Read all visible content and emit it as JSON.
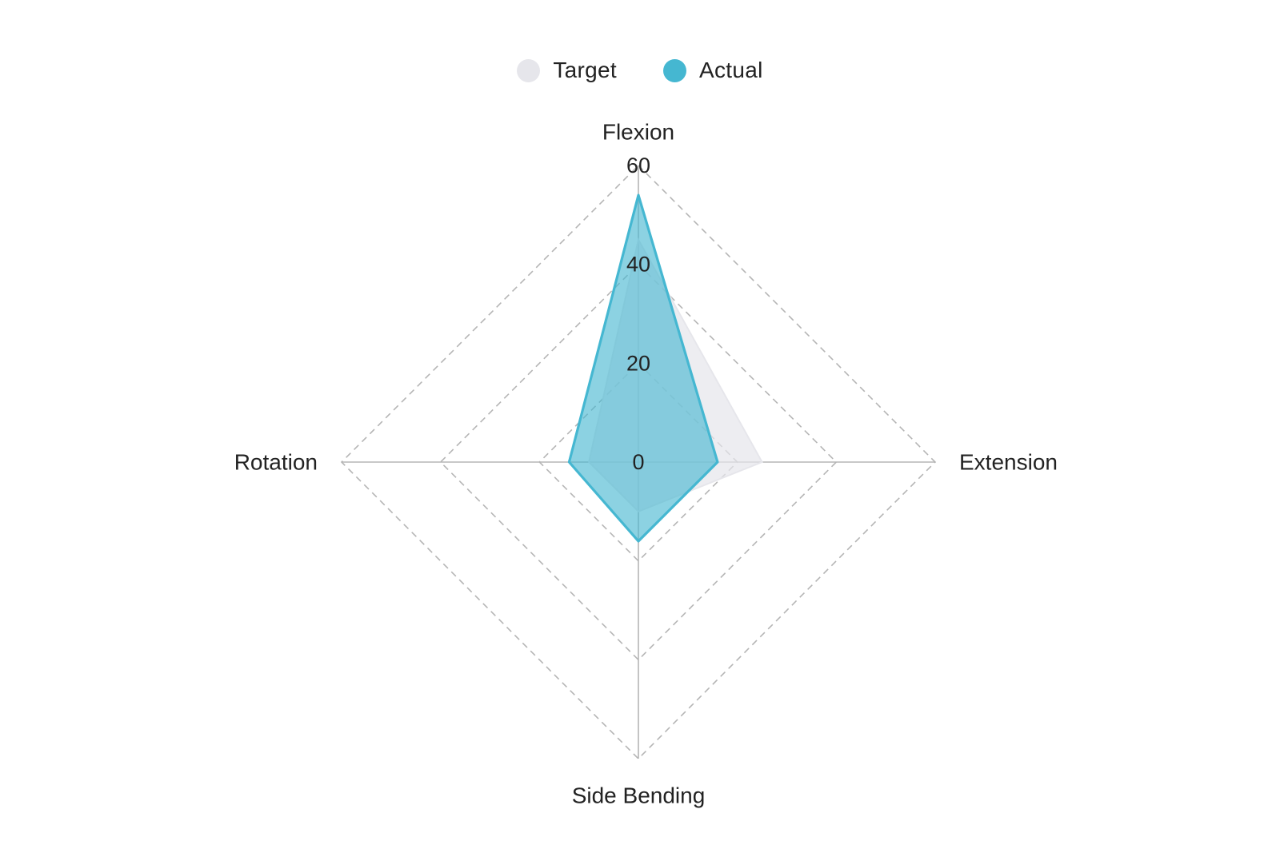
{
  "colors": {
    "target": "#e6e6eb",
    "actual": "#45b7d1",
    "grid": "#b5b5b5",
    "text": "#222222"
  },
  "legend": [
    {
      "label": "Target",
      "color": "#e6e6eb"
    },
    {
      "label": "Actual",
      "color": "#45b7d1"
    }
  ],
  "chart_data": {
    "type": "radar",
    "axes": [
      "Flexion",
      "Extension",
      "Side Bending",
      "Rotation"
    ],
    "radial_ticks": [
      "0",
      "20",
      "40",
      "60"
    ],
    "rlim": [
      0,
      60
    ],
    "grid": true,
    "legend_position": "top",
    "series": [
      {
        "name": "Target",
        "values": [
          45,
          25,
          10,
          10
        ]
      },
      {
        "name": "Actual",
        "values": [
          54,
          16,
          16,
          14
        ]
      }
    ]
  }
}
